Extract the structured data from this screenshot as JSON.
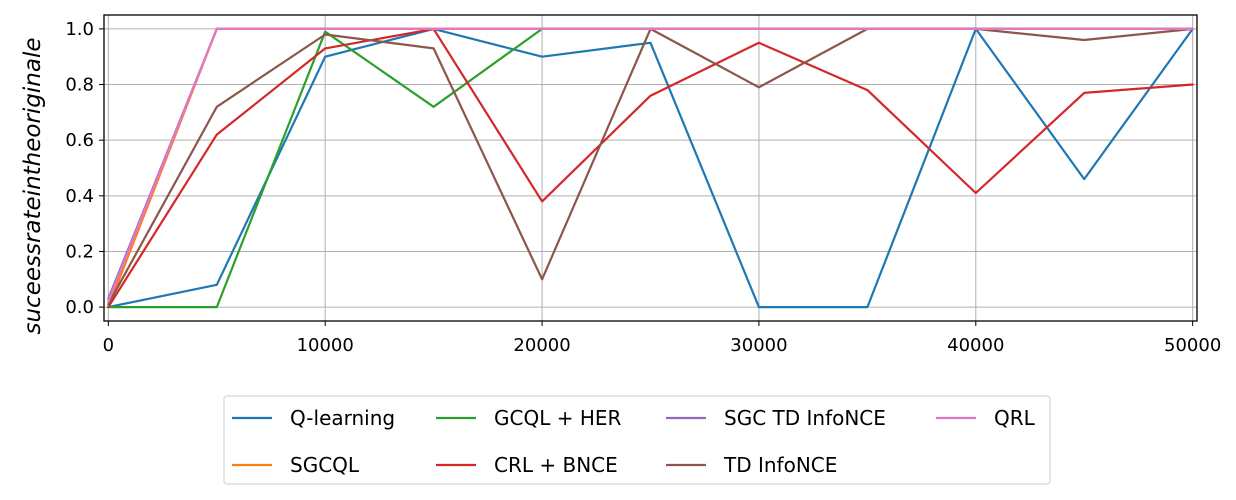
{
  "chart_data": {
    "type": "line",
    "ylabel": "suceessrateintheoriginale",
    "xlim": [
      -200,
      50200
    ],
    "ylim": [
      -0.05,
      1.05
    ],
    "xticks": [
      0,
      10000,
      20000,
      30000,
      40000,
      50000
    ],
    "yticks": [
      0.0,
      0.2,
      0.4,
      0.6,
      0.8,
      1.0
    ],
    "xtick_labels": [
      "0",
      "10000",
      "20000",
      "30000",
      "40000",
      "50000"
    ],
    "ytick_labels": [
      "0.0",
      "0.2",
      "0.4",
      "0.6",
      "0.8",
      "1.0"
    ],
    "grid": true,
    "legend_position": "bottom-center",
    "x": [
      0,
      5000,
      10000,
      15000,
      20000,
      25000,
      30000,
      35000,
      40000,
      45000,
      50000
    ],
    "series": [
      {
        "name": "Q-learning",
        "color": "#1f77b4",
        "values": [
          0.0,
          0.08,
          0.9,
          1.0,
          0.9,
          0.95,
          0.0,
          0.0,
          1.0,
          0.46,
          1.0
        ]
      },
      {
        "name": "SGCQL",
        "color": "#ff7f0e",
        "values": [
          0.0,
          1.0,
          1.0,
          1.0,
          1.0,
          1.0,
          1.0,
          1.0,
          1.0,
          1.0,
          1.0
        ]
      },
      {
        "name": "GCQL + HER",
        "color": "#2ca02c",
        "values": [
          0.0,
          0.0,
          0.99,
          0.72,
          1.0,
          1.0,
          1.0,
          1.0,
          1.0,
          1.0,
          1.0
        ]
      },
      {
        "name": "CRL + BNCE",
        "color": "#d62728",
        "values": [
          0.0,
          0.62,
          0.93,
          1.0,
          0.38,
          0.76,
          0.95,
          0.78,
          0.41,
          0.77,
          0.8
        ]
      },
      {
        "name": "SGC TD InfoNCE",
        "color": "#9467bd",
        "values": [
          0.03,
          1.0,
          1.0,
          1.0,
          1.0,
          1.0,
          1.0,
          1.0,
          1.0,
          1.0,
          1.0
        ]
      },
      {
        "name": "TD InfoNCE",
        "color": "#8c564b",
        "values": [
          0.01,
          0.72,
          0.98,
          0.93,
          0.1,
          1.0,
          0.79,
          1.0,
          1.0,
          0.96,
          1.0
        ]
      },
      {
        "name": "QRL",
        "color": "#e377c2",
        "values": [
          0.02,
          1.0,
          1.0,
          1.0,
          1.0,
          1.0,
          1.0,
          1.0,
          1.0,
          1.0,
          1.0
        ]
      }
    ],
    "legend_order": [
      "Q-learning",
      "GCQL + HER",
      "SGC TD InfoNCE",
      "QRL",
      "SGCQL",
      "CRL + BNCE",
      "TD InfoNCE"
    ]
  }
}
